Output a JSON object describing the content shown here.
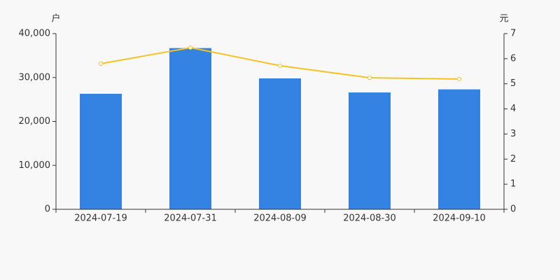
{
  "chart_data": {
    "type": "bar",
    "y_label": "户",
    "y2_label": "元",
    "categories": [
      "2024-07-19",
      "2024-07-31",
      "2024-08-09",
      "2024-08-30",
      "2024-09-10"
    ],
    "series": [
      {
        "type": "bar",
        "color": "#3482e2",
        "axis": "y",
        "values": [
          26300,
          36700,
          29800,
          26600,
          27300
        ]
      },
      {
        "type": "line",
        "color": "#f5c324",
        "axis": "y2",
        "values": [
          5.8,
          6.44,
          5.72,
          5.24,
          5.19
        ]
      }
    ],
    "ylim": [
      0,
      40000
    ],
    "yticks": [
      0,
      {
        "value": 10000,
        "label": "10,000"
      },
      {
        "value": 20000,
        "label": "20,000"
      },
      {
        "value": 30000,
        "label": "30,000"
      },
      {
        "value": 40000,
        "label": "40,000"
      }
    ],
    "y2lim": [
      0,
      7
    ],
    "y2ticks": [
      0,
      1,
      2,
      3,
      4,
      5,
      6,
      7
    ]
  }
}
